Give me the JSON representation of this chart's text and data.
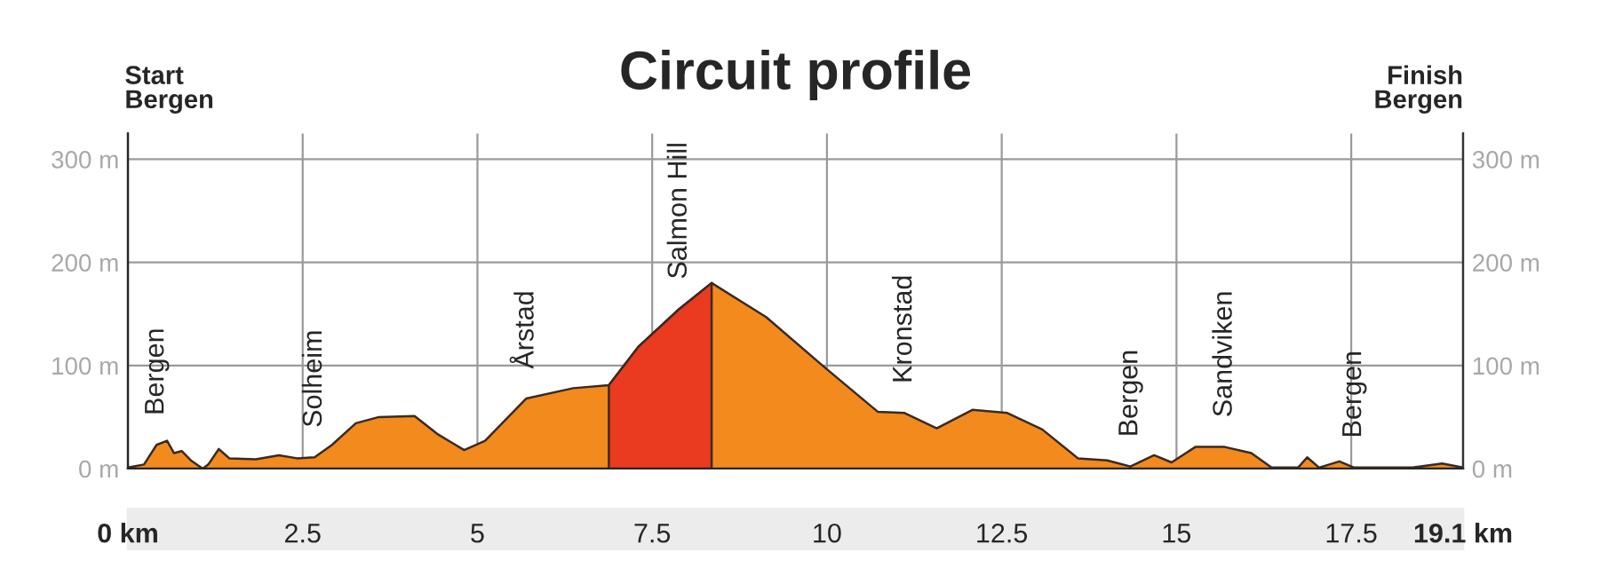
{
  "chart_data": {
    "type": "area",
    "title": "Circuit profile",
    "series": [
      {
        "color": "#f28a1e",
        "x": [
          0,
          0.23,
          0.41,
          0.56,
          0.66,
          0.77,
          0.9,
          1.07,
          1.15,
          1.3,
          1.45,
          1.83,
          2.16,
          2.42,
          2.67,
          2.92,
          3.26,
          3.59,
          4.1,
          4.44,
          4.81,
          5.11,
          5.7,
          6.37,
          6.88,
          7.3,
          7.89,
          8.35,
          9.13,
          9.97,
          10.73,
          11.11,
          11.57,
          12.08,
          12.58,
          13.08,
          13.59,
          14.01,
          14.34,
          14.68,
          14.93,
          15.27,
          15.69,
          16.07,
          16.36,
          16.74,
          16.87,
          17.04,
          17.33,
          17.54,
          18.38,
          18.8,
          19.1
        ],
        "values": [
          1,
          4,
          23,
          27,
          15,
          17,
          8,
          0,
          4,
          19,
          10,
          9,
          13,
          10,
          11,
          23,
          44,
          50,
          51,
          33,
          18,
          27,
          68,
          78,
          81,
          118,
          155,
          180,
          147,
          98,
          55,
          54,
          39,
          57,
          54,
          38,
          10,
          8,
          2,
          13,
          6,
          21,
          21,
          15,
          1,
          1,
          11,
          1,
          7,
          1,
          1,
          5,
          1
        ]
      },
      {
        "color": "#ea3a1f",
        "x": [
          6.88,
          7.3,
          7.89,
          8.35
        ],
        "values": [
          81,
          118,
          155,
          180
        ]
      }
    ],
    "xlim": [
      0,
      19.1
    ],
    "xticks": [
      {
        "value": 0,
        "label": "0 km"
      },
      2.5,
      5,
      7.5,
      10,
      12.5,
      15,
      17.5,
      {
        "value": 19.1,
        "label": "19.1 km"
      }
    ],
    "ylim": [
      0,
      325
    ],
    "yticks": [
      {
        "value": 0,
        "label": "0 m"
      },
      {
        "value": 100,
        "label": "100 m"
      },
      {
        "value": 200,
        "label": "200 m"
      },
      {
        "value": 300,
        "label": "300 m"
      }
    ],
    "y2lim": [
      0,
      325
    ],
    "y2ticks": [
      {
        "value": 0,
        "label": "0 m"
      },
      {
        "value": 100,
        "label": "100 m"
      },
      {
        "value": 200,
        "label": "200 m"
      },
      {
        "value": 300,
        "label": "300 m"
      }
    ],
    "grid": true,
    "annotations": [
      "Start\nBergen",
      "Finish\nBergen",
      {
        "text": "Bergen",
        "x": 0.41,
        "y": 23
      },
      {
        "text": "Solheim",
        "x": 2.67,
        "y": 11
      },
      {
        "text": "Årstad",
        "x": 5.7,
        "y": 68
      },
      {
        "text": "Salmon Hill",
        "x": 7.89,
        "y": 155
      },
      {
        "text": "Kronstad",
        "x": 11.11,
        "y": 54
      },
      {
        "text": "Bergen",
        "x": 14.34,
        "y": 2
      },
      {
        "text": "Sandviken",
        "x": 15.69,
        "y": 21
      },
      {
        "text": "Bergen",
        "x": 17.54,
        "y": 1
      }
    ]
  }
}
